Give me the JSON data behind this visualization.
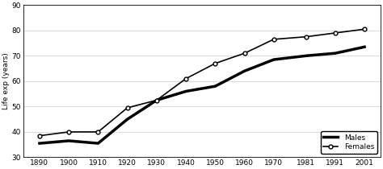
{
  "years": [
    1890,
    1900,
    1910,
    1920,
    1930,
    1940,
    1950,
    1960,
    1970,
    1981,
    1991,
    2001
  ],
  "males": [
    35.5,
    36.5,
    35.5,
    45.0,
    52.5,
    56.0,
    58.0,
    64.0,
    68.5,
    70.0,
    71.0,
    73.5
  ],
  "females": [
    38.5,
    40.0,
    40.0,
    49.5,
    52.5,
    61.0,
    67.0,
    71.0,
    76.5,
    77.5,
    79.0,
    80.5
  ],
  "ylabel": "Life exp (years)",
  "ylim": [
    30,
    90
  ],
  "yticks": [
    30,
    40,
    50,
    60,
    70,
    80,
    90
  ],
  "legend_labels": [
    "Males",
    "Females"
  ],
  "male_color": "black",
  "female_color": "black",
  "male_linewidth": 2.5,
  "female_linewidth": 1.2,
  "background_color": "#ffffff",
  "grid_color": "#cccccc"
}
